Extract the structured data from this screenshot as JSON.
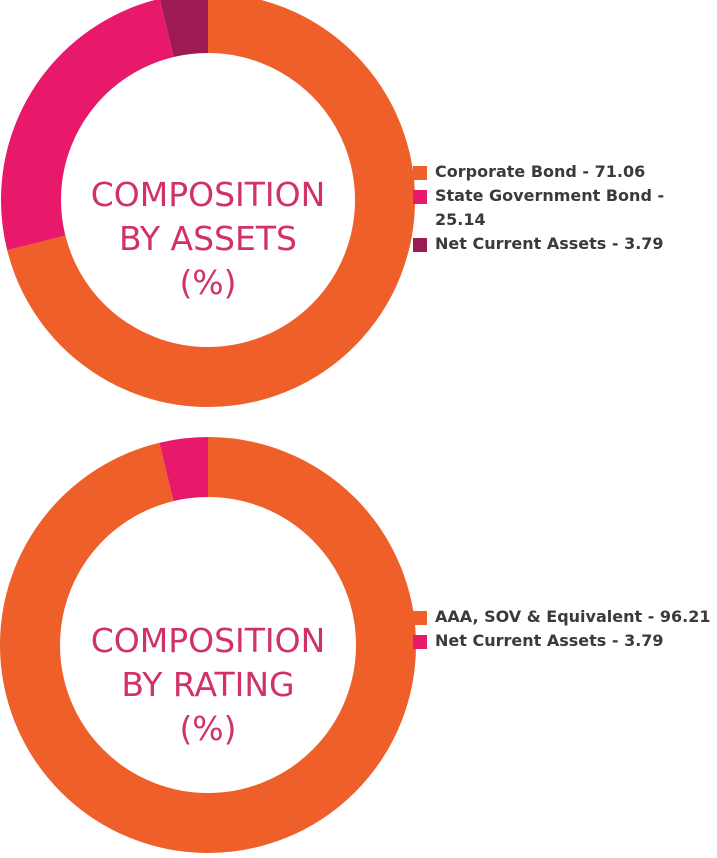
{
  "chart_data": [
    {
      "type": "pie",
      "title_lines": [
        "COMPOSITION",
        "BY ASSETS",
        "(%)"
      ],
      "slices": [
        {
          "label": "Corporate Bond - 71.06",
          "value": 71.06,
          "color": "#ee5f2a"
        },
        {
          "label": "State Government Bond - 25.14",
          "value": 25.14,
          "color": "#e8196a"
        },
        {
          "label": "Net Current Assets - 3.79",
          "value": 3.79,
          "color": "#9b1b52"
        }
      ]
    },
    {
      "type": "pie",
      "title_lines": [
        "COMPOSITION",
        "BY RATING",
        "(%)"
      ],
      "slices": [
        {
          "label": "AAA, SOV & Equivalent - 96.21",
          "value": 96.21,
          "color": "#ee5f2a"
        },
        {
          "label": "Net Current Assets - 3.79",
          "value": 3.79,
          "color": "#e8196a"
        }
      ]
    }
  ],
  "colors": {
    "title": "#d1306a",
    "legend_text": "#3a3a3a",
    "ring_inner": "#ffffff"
  }
}
